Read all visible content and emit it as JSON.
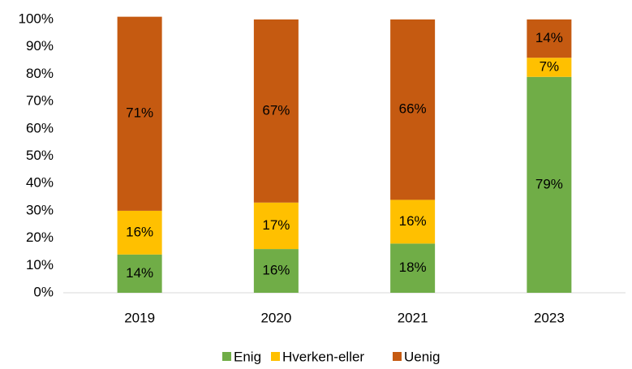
{
  "chart_data": {
    "type": "stacked_bar",
    "categories": [
      "2019",
      "2020",
      "2021",
      "2023"
    ],
    "series": [
      {
        "name": "Enig",
        "color": "#70ad47",
        "values": [
          14,
          16,
          18,
          79
        ],
        "value_labels": [
          "14%",
          "16%",
          "18%",
          "79%"
        ]
      },
      {
        "name": "Hverken-eller",
        "color": "#ffc000",
        "values": [
          16,
          17,
          16,
          7
        ],
        "value_labels": [
          "16%",
          "17%",
          "16%",
          "7%"
        ]
      },
      {
        "name": "Uenig",
        "color": "#c55a11",
        "values": [
          71,
          67,
          66,
          14
        ],
        "value_labels": [
          "71%",
          "67%",
          "66%",
          "14%"
        ]
      }
    ],
    "ylim": [
      0,
      100
    ],
    "yticks": [
      {
        "value": 0,
        "label": "0%"
      },
      {
        "value": 10,
        "label": "10%"
      },
      {
        "value": 20,
        "label": "20%"
      },
      {
        "value": 30,
        "label": "30%"
      },
      {
        "value": 40,
        "label": "40%"
      },
      {
        "value": 50,
        "label": "50%"
      },
      {
        "value": 60,
        "label": "60%"
      },
      {
        "value": 70,
        "label": "70%"
      },
      {
        "value": 80,
        "label": "80%"
      },
      {
        "value": 90,
        "label": "90%"
      },
      {
        "value": 100,
        "label": "100%"
      }
    ],
    "grid": false,
    "legend": "bottom"
  }
}
